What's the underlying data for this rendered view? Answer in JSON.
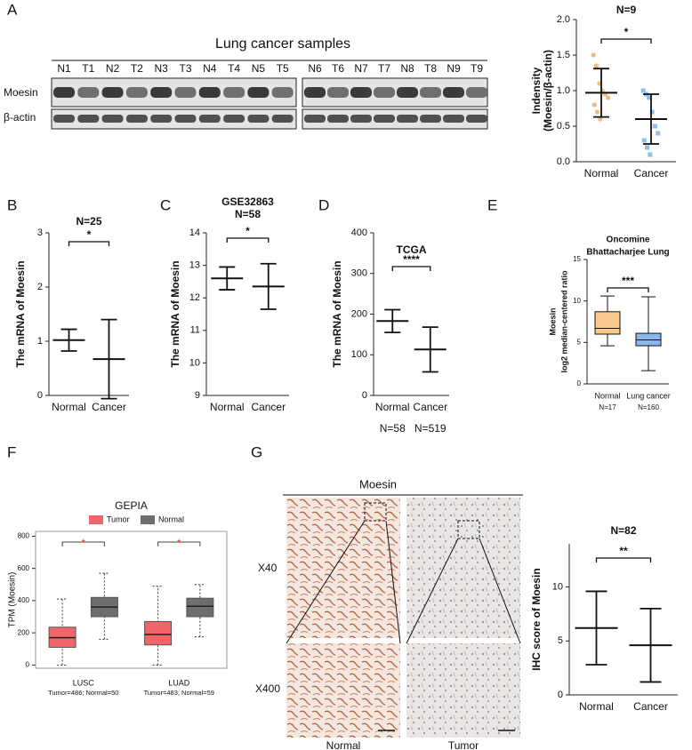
{
  "panel_letters": [
    "A",
    "B",
    "C",
    "D",
    "E",
    "F",
    "G"
  ],
  "blot": {
    "title": "Lung cancer samples",
    "lanes": [
      "N1",
      "T1",
      "N2",
      "T2",
      "N3",
      "T3",
      "N4",
      "T4",
      "N5",
      "T5",
      "N6",
      "T6",
      "N7",
      "T7",
      "N8",
      "T8",
      "N9",
      "T9"
    ],
    "rows": [
      "Moesin",
      "β-actin"
    ]
  },
  "ihc": {
    "title": "Moesin",
    "rows": [
      "X40",
      "X400"
    ],
    "columns": [
      "Normal",
      "Tumor"
    ]
  },
  "chart_data": [
    {
      "type": "strip",
      "title": "N=9",
      "ylabel": [
        "Indensity",
        "(Moesin/β-actin)"
      ],
      "categories": [
        "Normal",
        "Cancer"
      ],
      "colors": [
        "#f5b97a",
        "#8cbff0"
      ],
      "points": [
        [
          1.5,
          1.35,
          1.1,
          1.0,
          0.95,
          0.9,
          0.8,
          0.7,
          0.6
        ],
        [
          1.0,
          0.95,
          0.9,
          0.7,
          0.5,
          0.4,
          0.3,
          0.2,
          0.1
        ]
      ],
      "mean": [
        0.97,
        0.6
      ],
      "sd": [
        0.34,
        0.35
      ],
      "significance": "*",
      "ylim": [
        0,
        2
      ],
      "yticks": [
        {
          "value": 0,
          "label": "0.0"
        },
        0.5,
        {
          "value": 1,
          "label": "1.0"
        },
        1.5,
        {
          "value": 2,
          "label": "2.0"
        }
      ]
    },
    {
      "type": "strip",
      "title": "N=25",
      "ylabel": [
        "The mRNA of Moesin"
      ],
      "categories": [
        "Normal",
        "Cancer"
      ],
      "colors": [
        "#f5b97a",
        "#8cbff0"
      ],
      "mean": [
        1.02,
        0.67
      ],
      "sd": [
        0.2,
        0.73
      ],
      "significance": "*",
      "ylim": [
        0,
        3
      ],
      "yticks": [
        0,
        1,
        2,
        3
      ]
    },
    {
      "type": "strip",
      "title": "GSE32863",
      "subtitle": "N=58",
      "ylabel": [
        "The mRNA of Moesin"
      ],
      "categories": [
        "Normal",
        "Cancer"
      ],
      "colors": [
        "#f5b97a",
        "#8cbff0"
      ],
      "mean": [
        12.6,
        12.35
      ],
      "sd": [
        0.35,
        0.7
      ],
      "significance": "*",
      "ylim": [
        9,
        14
      ],
      "yticks": [
        9,
        10,
        11,
        12,
        13,
        14
      ]
    },
    {
      "type": "strip",
      "title": "TCGA",
      "ylabel": [
        "The mRNA of Moesin"
      ],
      "categories": [
        "Normal",
        "Cancer"
      ],
      "category_notes": [
        "N=58",
        "N=519"
      ],
      "colors": [
        "#f5b97a",
        "#8cbff0"
      ],
      "mean": [
        183,
        113
      ],
      "sd": [
        28,
        55
      ],
      "significance": "****",
      "ylim": [
        0,
        400
      ],
      "yticks": [
        0,
        100,
        200,
        300,
        400
      ]
    },
    {
      "type": "box",
      "title": "Oncomine",
      "subtitle": "Bhattacharjee Lung",
      "ylabel": [
        "Moesin",
        "log2 median-centered ratio"
      ],
      "categories": [
        "Normal",
        "Lung cancer"
      ],
      "category_notes": [
        "N=17",
        "N=160"
      ],
      "colors": [
        "#f8c88f",
        "#8ab8ee"
      ],
      "stats": [
        {
          "min": 4.6,
          "q1": 6.0,
          "median": 6.7,
          "q3": 8.7,
          "max": 10.6
        },
        {
          "min": 1.6,
          "q1": 4.6,
          "median": 5.3,
          "q3": 6.1,
          "max": 10.5
        }
      ],
      "significance": "***",
      "ylim": [
        0,
        15
      ],
      "yticks": [
        0,
        5,
        10,
        15
      ]
    },
    {
      "type": "grouped_box",
      "title": "GEPIA",
      "ylabel": [
        "TPM (Moesin)"
      ],
      "categories": [
        "LUSC",
        "LUAD"
      ],
      "category_notes": [
        "Tumor=486; Normal=50",
        "Tumor=483; Normal=59"
      ],
      "series": [
        {
          "name": "Tumor",
          "color": "#f0656a",
          "boxes": [
            {
              "min": 0,
              "q1": 110,
              "median": 170,
              "q3": 235,
              "max": 410
            },
            {
              "min": 0,
              "q1": 125,
              "median": 190,
              "q3": 270,
              "max": 490
            }
          ]
        },
        {
          "name": "Normal",
          "color": "#6e6e6e",
          "boxes": [
            {
              "min": 160,
              "q1": 300,
              "median": 360,
              "q3": 420,
              "max": 570
            },
            {
              "min": 175,
              "q1": 300,
              "median": 365,
              "q3": 415,
              "max": 500
            }
          ]
        }
      ],
      "significance": [
        "*",
        "*"
      ],
      "ylim": [
        -20,
        830
      ],
      "yticks": [
        0,
        200,
        400,
        600,
        800
      ]
    },
    {
      "type": "strip",
      "title": "N=82",
      "ylabel": [
        "IHC score of Moesin"
      ],
      "categories": [
        "Normal",
        "Cancer"
      ],
      "colors": [
        "#f5b97a",
        "#8cbff0"
      ],
      "mean": [
        6.2,
        4.6
      ],
      "sd": [
        3.4,
        3.4
      ],
      "significance": "**",
      "ylim": [
        0,
        14
      ],
      "yticks": [
        0,
        5,
        10
      ]
    }
  ]
}
